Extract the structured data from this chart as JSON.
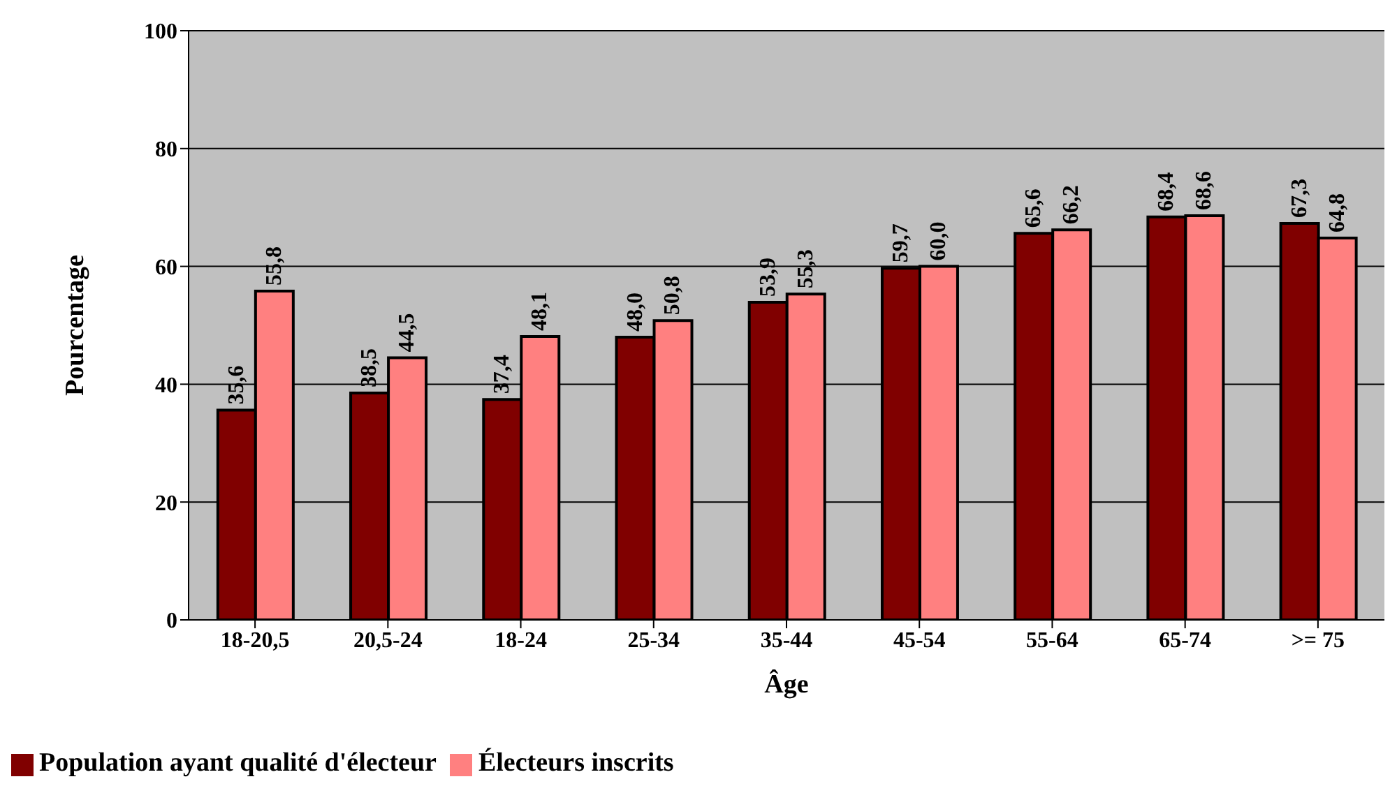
{
  "chart_data": {
    "type": "bar",
    "xlabel": "Âge",
    "ylabel": "Pourcentage",
    "categories": [
      "18-20,5",
      "20,5-24",
      "18-24",
      "25-34",
      "35-44",
      "45-54",
      "55-64",
      "65-74",
      ">= 75"
    ],
    "series": [
      {
        "name": "Population ayant qualité d'électeur",
        "color": "#800000",
        "values": [
          35.6,
          38.5,
          37.4,
          48.0,
          53.9,
          59.7,
          65.6,
          68.4,
          67.3
        ],
        "value_labels": [
          "35,6",
          "38,5",
          "37,4",
          "48,0",
          "53,9",
          "59,7",
          "65,6",
          "68,4",
          "67,3"
        ]
      },
      {
        "name": "Électeurs inscrits",
        "color": "#ff8080",
        "values": [
          55.8,
          44.5,
          48.1,
          50.8,
          55.3,
          60.0,
          66.2,
          68.6,
          64.8
        ],
        "value_labels": [
          "55,8",
          "44,5",
          "48,1",
          "50,8",
          "55,3",
          "60,0",
          "66,2",
          "68,6",
          "64,8"
        ]
      }
    ],
    "ylim": [
      0,
      100
    ],
    "yticks": [
      0,
      20,
      40,
      60,
      80,
      100
    ],
    "grid": "y",
    "legend": "bottom left"
  }
}
